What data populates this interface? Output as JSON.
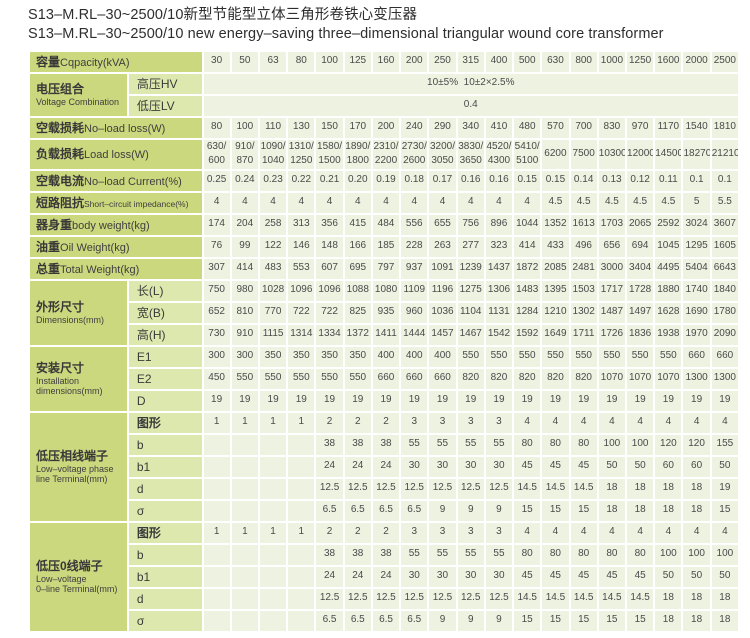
{
  "title": {
    "line1": "S13–M.RL–30~2500/10新型节能型立体三角形卷铁心变压器",
    "line2": "S13–M.RL–30~2500/10 new energy–saving three–dimensional triangular wound core transformer"
  },
  "colors": {
    "label_bg": "#cbd87e",
    "sublabel_bg": "#dde8af",
    "cell_bg": "#edf2e1",
    "grid": "#ffffff",
    "title_text": "#2e2e2e",
    "cell_text": "#4a4a4a"
  },
  "table": {
    "rows": [
      {
        "kind": "header",
        "label_zh": "容量",
        "label_en": "Cqpacity(kVA)",
        "values": [
          "30",
          "50",
          "63",
          "80",
          "100",
          "125",
          "160",
          "200",
          "250",
          "315",
          "400",
          "500",
          "630",
          "800",
          "1000",
          "1250",
          "1600",
          "2000",
          "2500"
        ]
      },
      {
        "kind": "group",
        "label_zh": "电压组合",
        "label_en": "Voltage Combination",
        "subrows": [
          {
            "sub": "高压HV",
            "span": "10±5%  10±2×2.5%"
          },
          {
            "sub": "低压LV",
            "span": "0.4"
          }
        ]
      },
      {
        "kind": "simple",
        "label_zh": "空载损耗",
        "label_en": "No–load loss(W)",
        "values": [
          "80",
          "100",
          "110",
          "130",
          "150",
          "170",
          "200",
          "240",
          "290",
          "340",
          "410",
          "480",
          "570",
          "700",
          "830",
          "970",
          "1170",
          "1540",
          "1810"
        ]
      },
      {
        "kind": "simple",
        "label_zh": "负载损耗",
        "label_en": "Load loss(W)",
        "values": [
          "630/\n600",
          "910/\n870",
          "1090/\n1040",
          "1310/\n1250",
          "1580/\n1500",
          "1890/\n1800",
          "2310/\n2200",
          "2730/\n2600",
          "3200/\n3050",
          "3830/\n3650",
          "4520/\n4300",
          "5410/\n5100",
          "6200",
          "7500",
          "10300",
          "12000",
          "14500",
          "18270",
          "21210"
        ]
      },
      {
        "kind": "simple",
        "label_zh": "空载电流",
        "label_en": "No–load Current(%)",
        "values": [
          "0.25",
          "0.24",
          "0.23",
          "0.22",
          "0.21",
          "0.20",
          "0.19",
          "0.18",
          "0.17",
          "0.16",
          "0.16",
          "0.15",
          "0.15",
          "0.14",
          "0.13",
          "0.12",
          "0.11",
          "0.1",
          "0.1"
        ]
      },
      {
        "kind": "simple",
        "label_zh": "短路阻抗",
        "label_en": "Short–circuit impedance(%)",
        "small_en": true,
        "values": [
          "4",
          "4",
          "4",
          "4",
          "4",
          "4",
          "4",
          "4",
          "4",
          "4",
          "4",
          "4",
          "4.5",
          "4.5",
          "4.5",
          "4.5",
          "4.5",
          "5",
          "5.5"
        ]
      },
      {
        "kind": "simple",
        "label_zh": "器身重",
        "label_en": "body weight(kg)",
        "values": [
          "174",
          "204",
          "258",
          "313",
          "356",
          "415",
          "484",
          "556",
          "655",
          "756",
          "896",
          "1044",
          "1352",
          "1613",
          "1703",
          "2065",
          "2592",
          "3024",
          "3607"
        ]
      },
      {
        "kind": "simple",
        "label_zh": "油重",
        "label_en": "Oil Weight(kg)",
        "values": [
          "76",
          "99",
          "122",
          "146",
          "148",
          "166",
          "185",
          "228",
          "263",
          "277",
          "323",
          "414",
          "433",
          "496",
          "656",
          "694",
          "1045",
          "1295",
          "1605"
        ]
      },
      {
        "kind": "simple",
        "label_zh": "总重",
        "label_en": "Total Weight(kg)",
        "values": [
          "307",
          "414",
          "483",
          "553",
          "607",
          "695",
          "797",
          "937",
          "1091",
          "1239",
          "1437",
          "1872",
          "2085",
          "2481",
          "3000",
          "3404",
          "4495",
          "5404",
          "6643"
        ]
      },
      {
        "kind": "group",
        "label_zh": "外形尺寸",
        "label_en": "Dimensions(mm)",
        "subrows": [
          {
            "sub": "长(L)",
            "values": [
              "750",
              "980",
              "1028",
              "1096",
              "1096",
              "1088",
              "1080",
              "1109",
              "1196",
              "1275",
              "1306",
              "1483",
              "1395",
              "1503",
              "1717",
              "1728",
              "1880",
              "1740",
              "1840"
            ]
          },
          {
            "sub": "宽(B)",
            "values": [
              "652",
              "810",
              "770",
              "722",
              "722",
              "825",
              "935",
              "960",
              "1036",
              "1104",
              "1131",
              "1284",
              "1210",
              "1302",
              "1487",
              "1497",
              "1628",
              "1690",
              "1780"
            ]
          },
          {
            "sub": "高(H)",
            "values": [
              "730",
              "910",
              "1115",
              "1314",
              "1334",
              "1372",
              "1411",
              "1444",
              "1457",
              "1467",
              "1542",
              "1592",
              "1649",
              "1711",
              "1726",
              "1836",
              "1938",
              "1970",
              "2090"
            ]
          }
        ]
      },
      {
        "kind": "group",
        "label_zh": "安装尺寸",
        "label_en": "Installation\ndimensions(mm)",
        "subrows": [
          {
            "sub": "E1",
            "values": [
              "300",
              "300",
              "350",
              "350",
              "350",
              "350",
              "400",
              "400",
              "400",
              "550",
              "550",
              "550",
              "550",
              "550",
              "550",
              "550",
              "550",
              "660",
              "660"
            ]
          },
          {
            "sub": "E2",
            "values": [
              "450",
              "550",
              "550",
              "550",
              "550",
              "550",
              "660",
              "660",
              "660",
              "820",
              "820",
              "820",
              "820",
              "820",
              "1070",
              "1070",
              "1070",
              "1300",
              "1300"
            ]
          },
          {
            "sub": "D",
            "values": [
              "19",
              "19",
              "19",
              "19",
              "19",
              "19",
              "19",
              "19",
              "19",
              "19",
              "19",
              "19",
              "19",
              "19",
              "19",
              "19",
              "19",
              "19",
              "19"
            ]
          }
        ]
      },
      {
        "kind": "group",
        "label_zh": "低压相线端子",
        "label_en": "Low–voltage phase\nline Terminal(mm)",
        "subrows": [
          {
            "sub": "图形",
            "bold": true,
            "values": [
              "1",
              "1",
              "1",
              "1",
              "2",
              "2",
              "2",
              "3",
              "3",
              "3",
              "3",
              "4",
              "4",
              "4",
              "4",
              "4",
              "4",
              "4",
              "4"
            ]
          },
          {
            "sub": "b",
            "values": [
              "",
              "",
              "",
              "",
              "38",
              "38",
              "38",
              "55",
              "55",
              "55",
              "55",
              "80",
              "80",
              "80",
              "100",
              "100",
              "120",
              "120",
              "155"
            ]
          },
          {
            "sub": "b1",
            "values": [
              "",
              "",
              "",
              "",
              "24",
              "24",
              "24",
              "30",
              "30",
              "30",
              "30",
              "45",
              "45",
              "45",
              "50",
              "50",
              "60",
              "60",
              "50"
            ]
          },
          {
            "sub": "d",
            "values": [
              "",
              "",
              "",
              "",
              "12.5",
              "12.5",
              "12.5",
              "12.5",
              "12.5",
              "12.5",
              "12.5",
              "14.5",
              "14.5",
              "14.5",
              "18",
              "18",
              "18",
              "18",
              "19"
            ]
          },
          {
            "sub": "σ",
            "values": [
              "",
              "",
              "",
              "",
              "6.5",
              "6.5",
              "6.5",
              "6.5",
              "9",
              "9",
              "9",
              "15",
              "15",
              "15",
              "18",
              "18",
              "18",
              "18",
              "15"
            ]
          }
        ]
      },
      {
        "kind": "group",
        "label_zh": "低压0线端子",
        "label_en": "Low–voltage\n0–line Terminal(mm)",
        "subrows": [
          {
            "sub": "图形",
            "bold": true,
            "values": [
              "1",
              "1",
              "1",
              "1",
              "2",
              "2",
              "2",
              "3",
              "3",
              "3",
              "3",
              "4",
              "4",
              "4",
              "4",
              "4",
              "4",
              "4",
              "4"
            ]
          },
          {
            "sub": "b",
            "values": [
              "",
              "",
              "",
              "",
              "38",
              "38",
              "38",
              "55",
              "55",
              "55",
              "55",
              "80",
              "80",
              "80",
              "80",
              "80",
              "100",
              "100",
              "100"
            ]
          },
          {
            "sub": "b1",
            "values": [
              "",
              "",
              "",
              "",
              "24",
              "24",
              "24",
              "30",
              "30",
              "30",
              "30",
              "45",
              "45",
              "45",
              "45",
              "45",
              "50",
              "50",
              "50"
            ]
          },
          {
            "sub": "d",
            "values": [
              "",
              "",
              "",
              "",
              "12.5",
              "12.5",
              "12.5",
              "12.5",
              "12.5",
              "12.5",
              "12.5",
              "14.5",
              "14.5",
              "14.5",
              "14.5",
              "14.5",
              "18",
              "18",
              "18"
            ]
          },
          {
            "sub": "σ",
            "values": [
              "",
              "",
              "",
              "",
              "6.5",
              "6.5",
              "6.5",
              "6.5",
              "9",
              "9",
              "9",
              "15",
              "15",
              "15",
              "15",
              "15",
              "18",
              "18",
              "18"
            ]
          }
        ]
      }
    ]
  }
}
